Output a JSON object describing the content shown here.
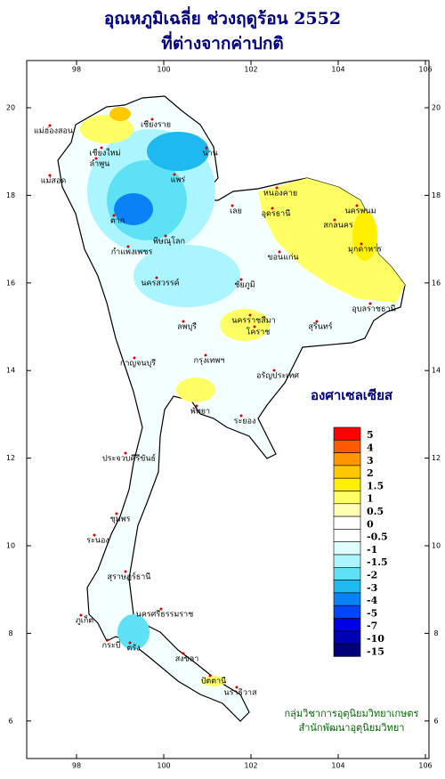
{
  "title": [
    "อุณหภูมิเฉลี่ย ช่วงฤดูร้อน 2552",
    "ที่ต่างจากค่าปกติ"
  ],
  "map": {
    "xticks": [
      98,
      100,
      102,
      104,
      106
    ],
    "yticks": [
      20,
      18,
      16,
      14,
      12,
      10,
      8,
      6
    ]
  },
  "legend": {
    "title": "องศาเซลเซียส",
    "items": [
      {
        "label": "5",
        "color": "#ff0000"
      },
      {
        "label": "4",
        "color": "#ff5a00"
      },
      {
        "label": "3",
        "color": "#ff9600"
      },
      {
        "label": "2",
        "color": "#ffc800"
      },
      {
        "label": "1.5",
        "color": "#fff000"
      },
      {
        "label": "1",
        "color": "#ffff64"
      },
      {
        "label": "0.5",
        "color": "#ffffb4"
      },
      {
        "label": "0",
        "color": "#ffffff"
      },
      {
        "label": "-0.5",
        "color": "#ffffff"
      },
      {
        "label": "-1",
        "color": "#e0ffff"
      },
      {
        "label": "-1.5",
        "color": "#aaf5ff"
      },
      {
        "label": "-2",
        "color": "#5fe1f5"
      },
      {
        "label": "-3",
        "color": "#1eb9f0"
      },
      {
        "label": "-4",
        "color": "#0a82f5"
      },
      {
        "label": "-5",
        "color": "#0046ff"
      },
      {
        "label": "-7",
        "color": "#0000e6"
      },
      {
        "label": "-10",
        "color": "#0000b4"
      },
      {
        "label": "-15",
        "color": "#000078"
      }
    ]
  },
  "places": [
    "เชียงราย",
    "แม่ฮ่องสอน",
    "เชียงใหม่",
    "ลำพูน",
    "น่าน",
    "แพร่",
    "แม่สอด",
    "ตาก",
    "พิษณุโลก",
    "หนองคาย",
    "อุดรธานี",
    "นครพนม",
    "สกลนคร",
    "มุกดาหาร",
    "กำแพงเพชร",
    "นครสวรรค์",
    "เลย",
    "ขอนแก่น",
    "ชัยภูมิ",
    "อุบลราชธานี",
    "นครราชสีมา",
    "โคราช",
    "สุรินทร์",
    "ลพบุรี",
    "กาญจนบุรี",
    "กรุงเทพฯ",
    "อรัญประเทศ",
    "ระยอง",
    "พัทยา",
    "ประจวบคีรีขันธ์",
    "ชุมพร",
    "ระนอง",
    "นครศรีธรรมราช",
    "ภูเก็ต",
    "สุราษฎร์ธานี",
    "กระบี่",
    "ตรัง",
    "สงขลา",
    "ปัตตานี",
    "นราธิวาส"
  ],
  "credits": [
    "กลุ่มวิชาการอุตุนิยมวิทยาเกษตร",
    "สำนักพัฒนาอุตุนิยมวิทยา"
  ]
}
